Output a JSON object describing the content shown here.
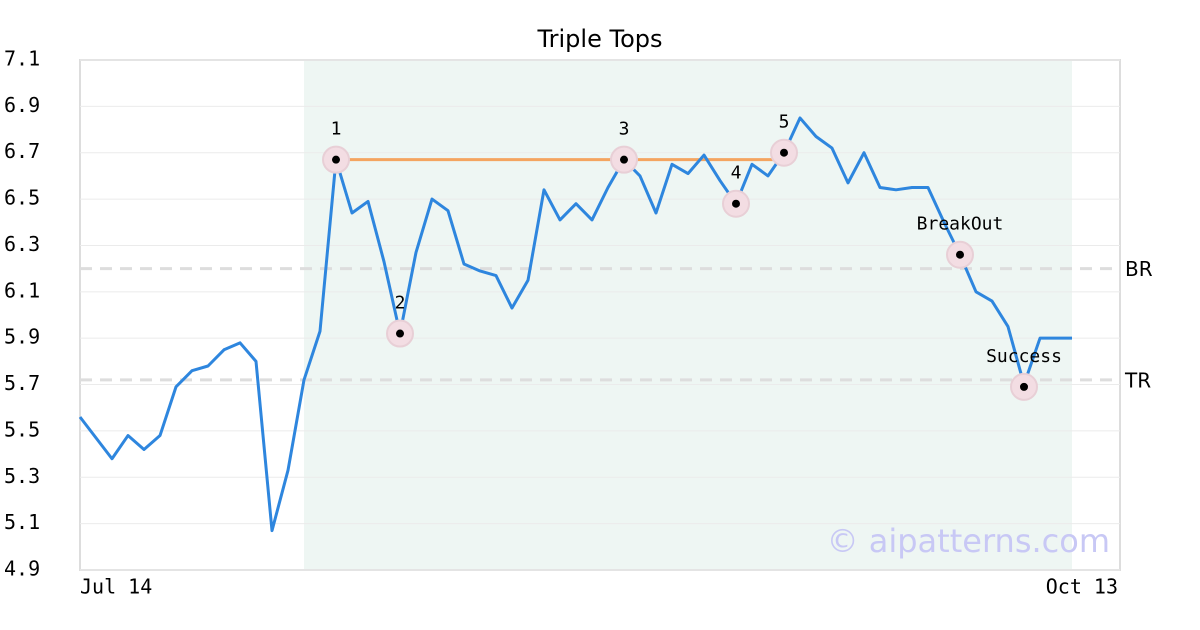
{
  "chart_data": {
    "type": "line",
    "title": "Triple Tops",
    "categories": [
      "Jul 14",
      null,
      null,
      null,
      null,
      null,
      null,
      null,
      null,
      null,
      null,
      null,
      null,
      null,
      null,
      null,
      null,
      null,
      null,
      null,
      null,
      null,
      null,
      null,
      null,
      null,
      null,
      null,
      null,
      null,
      null,
      null,
      null,
      null,
      null,
      null,
      null,
      null,
      null,
      null,
      null,
      null,
      null,
      null,
      null,
      null,
      null,
      null,
      null,
      null,
      null,
      null,
      null,
      null,
      null,
      null,
      null,
      null,
      null,
      null,
      null,
      null,
      "Oct 13"
    ],
    "values": [
      5.56,
      5.47,
      5.38,
      5.48,
      5.42,
      5.48,
      5.69,
      5.76,
      5.78,
      5.85,
      5.88,
      5.8,
      5.07,
      5.33,
      5.72,
      5.93,
      6.67,
      6.44,
      6.49,
      6.23,
      5.92,
      6.27,
      6.5,
      6.45,
      6.22,
      6.19,
      6.17,
      6.03,
      6.15,
      6.54,
      6.41,
      6.48,
      6.41,
      6.55,
      6.67,
      6.6,
      6.44,
      6.65,
      6.61,
      6.69,
      6.58,
      6.48,
      6.65,
      6.6,
      6.7,
      6.85,
      6.77,
      6.72,
      6.57,
      6.7,
      6.55,
      6.54,
      6.55,
      6.55,
      6.4,
      6.26,
      6.1,
      6.06,
      5.95,
      5.7,
      5.9,
      5.9,
      5.9
    ],
    "color": "#2e86de",
    "ylim": [
      4.9,
      7.1
    ],
    "yticks": [
      4.9,
      5.1,
      5.3,
      5.5,
      5.7,
      5.9,
      6.1,
      6.3,
      6.5,
      6.7,
      6.9,
      7.1
    ],
    "grid": true,
    "shaded_range": {
      "start": 14,
      "end": 62,
      "color": "#eef6f3"
    },
    "resistance": {
      "from": 16,
      "to": 44,
      "value": 6.67,
      "color": "#f4a460"
    },
    "levels": [
      {
        "label": "BR",
        "value": 6.2
      },
      {
        "label": "TR",
        "value": 5.72
      }
    ],
    "pattern_points": [
      {
        "label": "1",
        "index": 16,
        "value": 6.67
      },
      {
        "label": "2",
        "index": 20,
        "value": 5.92
      },
      {
        "label": "3",
        "index": 34,
        "value": 6.67
      },
      {
        "label": "4",
        "index": 41,
        "value": 6.48
      },
      {
        "label": "5",
        "index": 44,
        "value": 6.7
      },
      {
        "label": "BreakOut",
        "index": 55,
        "value": 6.26
      },
      {
        "label": "Success",
        "index": 59,
        "value": 5.69
      }
    ],
    "watermark": "© aipatterns.com"
  }
}
